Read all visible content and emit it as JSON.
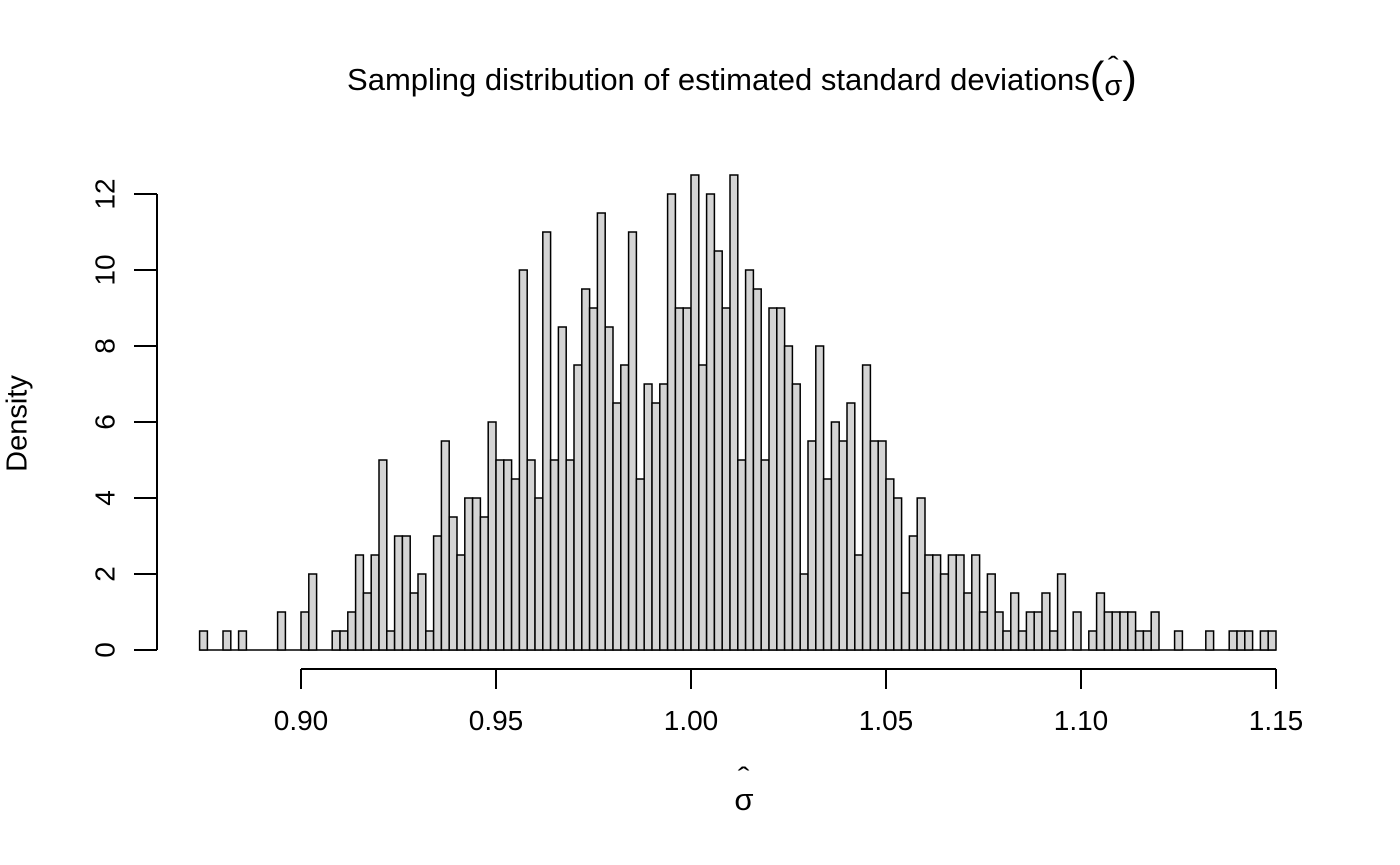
{
  "title": {
    "main": "Sampling distribution of estimated standard deviations ",
    "open_paren": "(",
    "close_paren": ")",
    "hat_glyph": "ˆ",
    "sigma_glyph": "σ"
  },
  "colors": {
    "background": "#ffffff",
    "bar_fill": "#d4d4d4",
    "bar_stroke": "#000000",
    "axis": "#000000",
    "text": "#000000"
  },
  "chart_data": {
    "type": "bar",
    "subtype": "histogram",
    "title": "Sampling distribution of estimated standard deviations (σ̂)",
    "xlabel": "σ̂",
    "ylabel": "Density",
    "grid": false,
    "legend": "none",
    "xlim": [
      0.874,
      1.15
    ],
    "ylim": [
      0,
      12.5
    ],
    "bin_start": 0.874,
    "bin_width": 0.002,
    "x_tick_values": [
      0.9,
      0.95,
      1.0,
      1.05,
      1.1,
      1.15
    ],
    "x_tick_labels": [
      "0.90",
      "0.95",
      "1.00",
      "1.05",
      "1.10",
      "1.15"
    ],
    "y_tick_values": [
      0,
      2,
      4,
      6,
      8,
      10,
      12
    ],
    "y_tick_labels": [
      "0",
      "2",
      "4",
      "6",
      "8",
      "10",
      "12"
    ],
    "densities": [
      0.5,
      0,
      0,
      0.5,
      0,
      0.5,
      0,
      0,
      0,
      0,
      1,
      0,
      0,
      1,
      2,
      0,
      0,
      0.5,
      0.5,
      1,
      2.5,
      1.5,
      2.5,
      5,
      0.5,
      3,
      3,
      1.5,
      2,
      0.5,
      3,
      5.5,
      3.5,
      2.5,
      4,
      4,
      3.5,
      6,
      5,
      5,
      4.5,
      10,
      5,
      4,
      11,
      5,
      8.5,
      5,
      7.5,
      9.5,
      9,
      11.5,
      8.5,
      6.5,
      7.5,
      11,
      4.5,
      7,
      6.5,
      7,
      12,
      9,
      9,
      12.5,
      7.5,
      12,
      10.5,
      9,
      12.5,
      5,
      10,
      9.5,
      5,
      9,
      9,
      8,
      7,
      2,
      5.5,
      8,
      4.5,
      6,
      5.5,
      6.5,
      2.5,
      7.5,
      5.5,
      5.5,
      4.5,
      4,
      1.5,
      3,
      4,
      2.5,
      2.5,
      2,
      2.5,
      2.5,
      1.5,
      2.5,
      1,
      2,
      1,
      0.5,
      1.5,
      0.5,
      1,
      1,
      1.5,
      0.5,
      2,
      0,
      1,
      0,
      0.5,
      1.5,
      1,
      1,
      1,
      1,
      0.5,
      0.5,
      1,
      0,
      0,
      0.5,
      0,
      0,
      0,
      0.5,
      0,
      0,
      0.5,
      0.5,
      0.5,
      0,
      0.5,
      0.5
    ]
  }
}
